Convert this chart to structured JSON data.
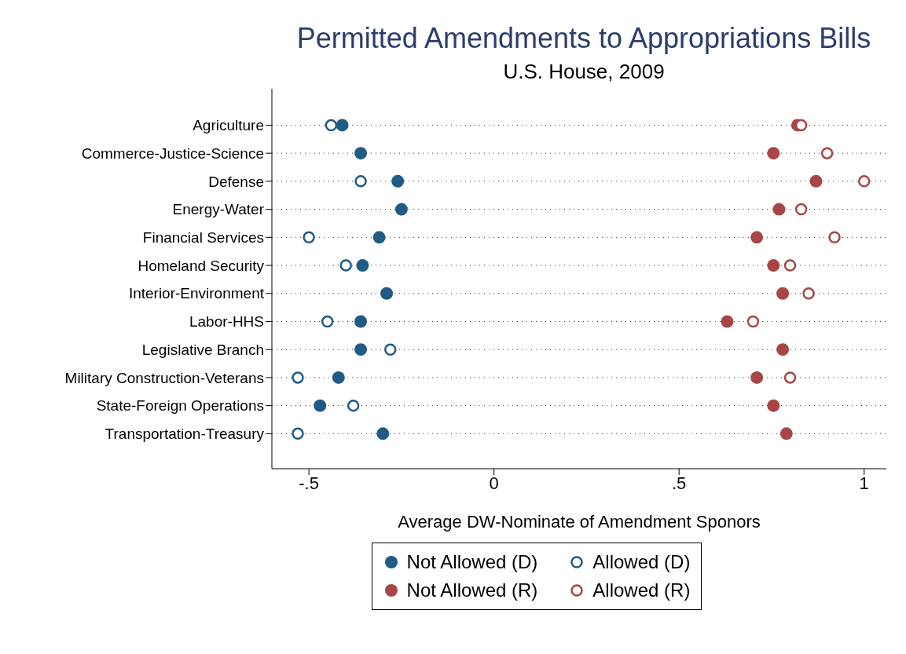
{
  "chart_data": {
    "type": "scatter",
    "orientation": "horizontal",
    "title": "Permitted Amendments to Appropriations Bills",
    "subtitle": "U.S. House, 2009",
    "xlabel": "Average DW-Nominate of Amendment Sponors",
    "categories": [
      "Agriculture",
      "Commerce-Justice-Science",
      "Defense",
      "Energy-Water",
      "Financial Services",
      "Homeland Security",
      "Interior-Environment",
      "Labor-HHS",
      "Legislative Branch",
      "Military Construction-Veterans",
      "State-Foreign Operations",
      "Transportation-Treasury"
    ],
    "series": [
      {
        "name": "Not Allowed (D)",
        "color": "#1f5b85",
        "marker": "circle",
        "values": [
          -0.41,
          -0.36,
          -0.26,
          -0.25,
          -0.31,
          -0.355,
          -0.29,
          -0.36,
          -0.36,
          -0.42,
          -0.47,
          -0.3
        ]
      },
      {
        "name": "Not Allowed (R)",
        "color": "#a84646",
        "marker": "circle",
        "values": [
          0.82,
          0.755,
          0.87,
          0.77,
          0.71,
          0.755,
          0.78,
          0.63,
          0.78,
          0.71,
          0.755,
          0.79
        ]
      },
      {
        "name": "Allowed (D)",
        "color": "#1f5b85",
        "marker": "circle",
        "values": [
          -0.44,
          null,
          -0.36,
          null,
          -0.5,
          -0.4,
          null,
          -0.45,
          -0.28,
          -0.53,
          -0.38,
          -0.53
        ]
      },
      {
        "name": "Allowed (R)",
        "color": "#a84646",
        "marker": "circle",
        "values": [
          0.83,
          0.9,
          1.0,
          0.83,
          0.92,
          0.8,
          0.85,
          0.7,
          null,
          0.8,
          null,
          null
        ]
      }
    ],
    "xlim": [
      -0.6,
      1.06
    ],
    "xticks": [
      {
        "value": -0.5,
        "label": "-.5"
      },
      0,
      {
        "value": 0.5,
        "label": ".5"
      },
      1
    ],
    "grid": "y",
    "line_style": "dotted",
    "legend": "bottom"
  }
}
